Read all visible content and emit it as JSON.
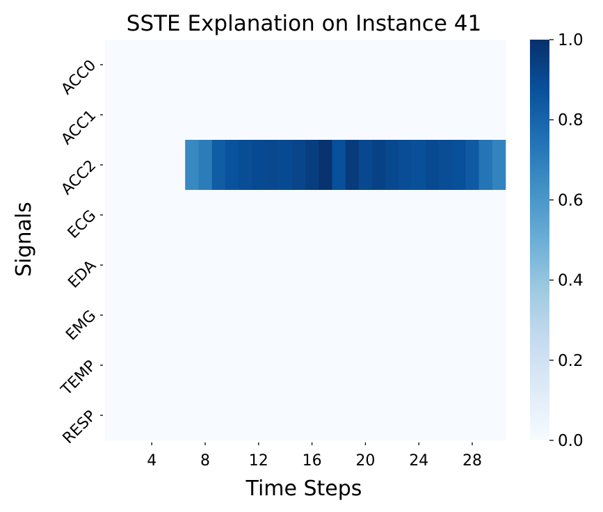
{
  "chart_data": {
    "type": "heatmap",
    "title": "SSTE Explanation on Instance 41",
    "xlabel": "Time Steps",
    "ylabel": "Signals",
    "rows": [
      "ACC0",
      "ACC1",
      "ACC2",
      "ECG",
      "EDA",
      "EMG",
      "TEMP",
      "RESP"
    ],
    "n_cols": 30,
    "xtick_values": [
      4,
      8,
      12,
      16,
      20,
      24,
      28
    ],
    "xtick_labels": [
      "4",
      "8",
      "12",
      "16",
      "20",
      "24",
      "28"
    ],
    "colormap": "Blues",
    "colors": {
      "low": "#f7fbff",
      "high": "#08306b"
    },
    "vmin": 0.0,
    "vmax": 1.0,
    "colorbar_ticks": [
      "0.0",
      "0.2",
      "0.4",
      "0.6",
      "0.8",
      "1.0"
    ],
    "values": [
      [
        0,
        0,
        0,
        0,
        0,
        0,
        0,
        0,
        0,
        0,
        0,
        0,
        0,
        0,
        0,
        0,
        0,
        0,
        0,
        0,
        0,
        0,
        0,
        0,
        0,
        0,
        0,
        0,
        0,
        0
      ],
      [
        0,
        0,
        0,
        0,
        0,
        0,
        0,
        0,
        0,
        0,
        0,
        0,
        0,
        0,
        0,
        0,
        0,
        0,
        0,
        0,
        0,
        0,
        0,
        0,
        0,
        0,
        0,
        0,
        0,
        0
      ],
      [
        0,
        0,
        0,
        0,
        0,
        0,
        0.66,
        0.71,
        0.83,
        0.87,
        0.89,
        0.9,
        0.91,
        0.9,
        0.92,
        0.95,
        0.99,
        0.88,
        0.96,
        0.91,
        0.93,
        0.91,
        0.89,
        0.88,
        0.9,
        0.89,
        0.88,
        0.84,
        0.74,
        0.68
      ],
      [
        0,
        0,
        0,
        0,
        0,
        0,
        0,
        0,
        0,
        0,
        0,
        0,
        0,
        0,
        0,
        0,
        0,
        0,
        0,
        0,
        0,
        0,
        0,
        0,
        0,
        0,
        0,
        0,
        0,
        0
      ],
      [
        0,
        0,
        0,
        0,
        0,
        0,
        0,
        0,
        0,
        0,
        0,
        0,
        0,
        0,
        0,
        0,
        0,
        0,
        0,
        0,
        0,
        0,
        0,
        0,
        0,
        0,
        0,
        0,
        0,
        0
      ],
      [
        0,
        0,
        0,
        0,
        0,
        0,
        0,
        0,
        0,
        0,
        0,
        0,
        0,
        0,
        0,
        0,
        0,
        0,
        0,
        0,
        0,
        0,
        0,
        0,
        0,
        0,
        0,
        0,
        0,
        0
      ],
      [
        0,
        0,
        0,
        0,
        0,
        0,
        0,
        0,
        0,
        0,
        0,
        0,
        0,
        0,
        0,
        0,
        0,
        0,
        0,
        0,
        0,
        0,
        0,
        0,
        0,
        0,
        0,
        0,
        0,
        0
      ],
      [
        0,
        0,
        0,
        0,
        0,
        0,
        0,
        0,
        0,
        0,
        0,
        0,
        0,
        0,
        0,
        0,
        0,
        0,
        0,
        0,
        0,
        0,
        0,
        0,
        0,
        0,
        0,
        0,
        0,
        0
      ]
    ]
  }
}
